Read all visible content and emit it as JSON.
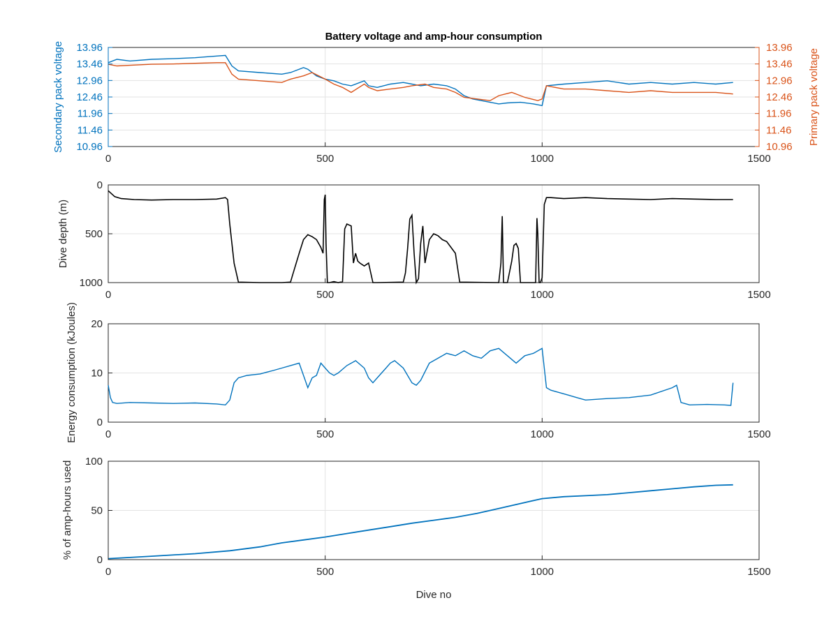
{
  "figure": {
    "title": "Battery voltage and amp-hour consumption",
    "xlabel": "Dive no"
  },
  "colors": {
    "blue": "#0072BD",
    "orange": "#D95319",
    "black": "#000000",
    "grid": "#e3e3e3",
    "axis": "#262626"
  },
  "chart_data": [
    {
      "type": "line",
      "title": "Battery voltage and amp-hour consumption",
      "xlim": [
        0,
        1500
      ],
      "xticks": [
        "0",
        "500",
        "1000",
        "1500"
      ],
      "ylim_left": [
        10.96,
        13.96
      ],
      "ylim_right": [
        10.96,
        13.96
      ],
      "yticks_left": [
        "13.96",
        "13.46",
        "12.96",
        "12.46",
        "11.96",
        "11.46",
        "10.96"
      ],
      "yticks_right": [
        "13.96",
        "13.46",
        "12.96",
        "12.46",
        "11.96",
        "11.46",
        "10.96"
      ],
      "ylabel_left": "Secondary pack voltage",
      "ylabel_right": "Primary pack voltage",
      "grid": true,
      "series": [
        {
          "name": "Secondary pack voltage",
          "axis": "left",
          "color": "#0072BD",
          "x": [
            0,
            20,
            50,
            100,
            150,
            200,
            250,
            270,
            285,
            300,
            350,
            400,
            420,
            450,
            460,
            480,
            500,
            520,
            540,
            560,
            590,
            600,
            620,
            650,
            680,
            700,
            720,
            750,
            780,
            800,
            820,
            840,
            860,
            880,
            900,
            920,
            950,
            980,
            1000,
            1010,
            1050,
            1100,
            1150,
            1200,
            1250,
            1300,
            1350,
            1400,
            1440
          ],
          "y": [
            13.5,
            13.6,
            13.55,
            13.6,
            13.62,
            13.65,
            13.7,
            13.72,
            13.4,
            13.25,
            13.2,
            13.15,
            13.2,
            13.35,
            13.3,
            13.1,
            13.0,
            12.95,
            12.85,
            12.8,
            12.95,
            12.8,
            12.75,
            12.85,
            12.9,
            12.85,
            12.8,
            12.85,
            12.8,
            12.7,
            12.5,
            12.4,
            12.35,
            12.3,
            12.25,
            12.28,
            12.3,
            12.25,
            12.2,
            12.8,
            12.85,
            12.9,
            12.95,
            12.85,
            12.9,
            12.85,
            12.9,
            12.85,
            12.9
          ]
        },
        {
          "name": "Primary pack voltage",
          "axis": "right",
          "color": "#D95319",
          "x": [
            0,
            20,
            50,
            100,
            150,
            200,
            250,
            270,
            285,
            300,
            350,
            400,
            420,
            450,
            470,
            500,
            520,
            540,
            560,
            590,
            600,
            620,
            650,
            680,
            700,
            730,
            750,
            780,
            800,
            820,
            850,
            880,
            900,
            930,
            960,
            990,
            1000,
            1010,
            1050,
            1100,
            1150,
            1200,
            1250,
            1300,
            1350,
            1400,
            1440
          ],
          "y": [
            13.45,
            13.4,
            13.42,
            13.45,
            13.46,
            13.48,
            13.5,
            13.5,
            13.15,
            13.0,
            12.95,
            12.9,
            13.0,
            13.1,
            13.2,
            13.0,
            12.85,
            12.75,
            12.6,
            12.85,
            12.75,
            12.65,
            12.7,
            12.75,
            12.8,
            12.85,
            12.75,
            12.7,
            12.6,
            12.45,
            12.4,
            12.35,
            12.5,
            12.6,
            12.45,
            12.35,
            12.4,
            12.8,
            12.7,
            12.7,
            12.65,
            12.6,
            12.65,
            12.6,
            12.6,
            12.6,
            12.55
          ]
        }
      ]
    },
    {
      "type": "line",
      "xlim": [
        0,
        1500
      ],
      "xticks": [
        "0",
        "500",
        "1000",
        "1500"
      ],
      "ylim": [
        1000,
        0
      ],
      "yticks": [
        "0",
        "500",
        "1000"
      ],
      "ylabel": "Dive depth (m)",
      "grid": true,
      "series": [
        {
          "color": "#000000",
          "x": [
            0,
            5,
            15,
            30,
            60,
            100,
            150,
            200,
            250,
            270,
            275,
            280,
            290,
            300,
            350,
            400,
            420,
            425,
            440,
            450,
            460,
            470,
            480,
            490,
            495,
            498,
            500,
            502,
            505,
            510,
            520,
            530,
            540,
            545,
            550,
            560,
            565,
            570,
            575,
            580,
            590,
            600,
            610,
            620,
            680,
            685,
            690,
            695,
            700,
            705,
            710,
            715,
            720,
            725,
            730,
            740,
            750,
            760,
            770,
            780,
            790,
            800,
            810,
            900,
            905,
            908,
            911,
            914,
            920,
            930,
            935,
            940,
            945,
            950,
            960,
            985,
            988,
            990,
            993,
            996,
            1000,
            1005,
            1010,
            1020,
            1050,
            1100,
            1150,
            1200,
            1250,
            1300,
            1350,
            1400,
            1440
          ],
          "y": [
            60,
            80,
            120,
            140,
            150,
            155,
            150,
            150,
            145,
            130,
            150,
            400,
            800,
            995,
            1000,
            1000,
            995,
            920,
            700,
            560,
            510,
            530,
            560,
            640,
            700,
            150,
            100,
            600,
            1000,
            1000,
            990,
            1000,
            990,
            450,
            400,
            420,
            800,
            700,
            780,
            800,
            830,
            800,
            1000,
            1000,
            995,
            900,
            650,
            350,
            310,
            700,
            1000,
            960,
            600,
            420,
            800,
            560,
            500,
            520,
            560,
            580,
            640,
            700,
            995,
            1000,
            800,
            320,
            1000,
            1000,
            1000,
            780,
            620,
            600,
            650,
            1000,
            1000,
            1000,
            340,
            500,
            1000,
            1000,
            950,
            200,
            130,
            130,
            140,
            130,
            140,
            145,
            150,
            140,
            145,
            150,
            150
          ]
        }
      ]
    },
    {
      "type": "line",
      "xlim": [
        0,
        1500
      ],
      "xticks": [
        "0",
        "500",
        "1000",
        "1500"
      ],
      "ylim": [
        0,
        20
      ],
      "yticks": [
        "0",
        "10",
        "20"
      ],
      "ylabel": "Energy consumption (kJoules)",
      "grid": true,
      "series": [
        {
          "color": "#0072BD",
          "x": [
            0,
            5,
            10,
            20,
            50,
            100,
            150,
            200,
            250,
            270,
            280,
            290,
            300,
            320,
            350,
            380,
            400,
            420,
            440,
            450,
            460,
            470,
            480,
            490,
            500,
            510,
            520,
            530,
            550,
            570,
            590,
            600,
            610,
            620,
            640,
            650,
            660,
            680,
            700,
            710,
            720,
            740,
            760,
            780,
            800,
            820,
            840,
            860,
            880,
            900,
            920,
            940,
            960,
            980,
            1000,
            1005,
            1010,
            1020,
            1040,
            1060,
            1080,
            1100,
            1150,
            1200,
            1250,
            1300,
            1310,
            1320,
            1340,
            1380,
            1420,
            1435,
            1440
          ],
          "y": [
            7.5,
            5,
            4,
            3.8,
            4,
            3.9,
            3.8,
            3.9,
            3.7,
            3.5,
            4.5,
            8,
            9,
            9.5,
            9.8,
            10.5,
            11,
            11.5,
            12,
            9.5,
            7,
            9,
            9.5,
            12,
            11,
            10,
            9.5,
            10,
            11.5,
            12.5,
            11,
            9,
            8,
            9,
            11,
            12,
            12.5,
            11,
            8,
            7.5,
            8.5,
            12,
            13,
            14,
            13.5,
            14.5,
            13.5,
            13,
            14.5,
            15,
            13.5,
            12,
            13.5,
            14,
            15,
            11,
            7,
            6.5,
            6,
            5.5,
            5,
            4.5,
            4.8,
            5,
            5.5,
            7,
            7.5,
            4,
            3.5,
            3.6,
            3.5,
            3.4,
            8
          ]
        }
      ]
    },
    {
      "type": "line",
      "xlim": [
        0,
        1500
      ],
      "xticks": [
        "0",
        "500",
        "1000",
        "1500"
      ],
      "ylim": [
        0,
        100
      ],
      "yticks": [
        "0",
        "50",
        "100"
      ],
      "ylabel": "% of amp-hours used",
      "xlabel": "Dive no",
      "grid": true,
      "series": [
        {
          "color": "#0072BD",
          "x": [
            0,
            100,
            200,
            280,
            350,
            400,
            450,
            500,
            550,
            600,
            650,
            700,
            750,
            800,
            850,
            900,
            950,
            1000,
            1050,
            1100,
            1150,
            1200,
            1250,
            1300,
            1350,
            1400,
            1440
          ],
          "y": [
            1,
            3.5,
            6,
            9,
            13,
            17,
            20,
            23,
            26.5,
            30,
            33.5,
            37,
            40,
            43,
            47,
            52,
            57,
            62,
            64,
            65,
            66,
            68,
            70,
            72,
            74,
            75.5,
            76
          ]
        }
      ]
    }
  ]
}
